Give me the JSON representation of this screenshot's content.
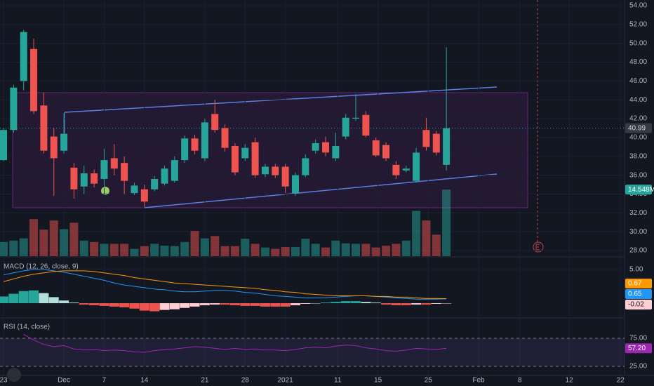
{
  "chart_data": [
    {
      "type": "candlestick",
      "xlim": [
        -0.35,
        61.7
      ],
      "xticks": [
        {
          "value": 0,
          "label": "23"
        },
        {
          "value": 6,
          "label": "Dec"
        },
        {
          "value": 10,
          "label": "7"
        },
        {
          "value": 14,
          "label": "14"
        },
        {
          "value": 20,
          "label": "21"
        },
        {
          "value": 24,
          "label": "28"
        },
        {
          "value": 28,
          "label": "2021"
        },
        {
          "value": 33.2,
          "label": "11"
        },
        {
          "value": 37.2,
          "label": "15"
        },
        {
          "value": 42.2,
          "label": "25"
        },
        {
          "value": 47.2,
          "label": "Feb"
        },
        {
          "value": 51.3,
          "label": "8"
        },
        {
          "value": 56.2,
          "label": "12"
        },
        {
          "value": 61.3,
          "label": "22"
        }
      ],
      "ylim": [
        27.4,
        54.6
      ],
      "yticks": [
        {
          "value": 28,
          "label": "28.00"
        },
        {
          "value": 30,
          "label": "30.00"
        },
        {
          "value": 32,
          "label": "32.00"
        },
        {
          "value": 34,
          "label": "34.00"
        },
        {
          "value": 36,
          "label": "36.00"
        },
        {
          "value": 38,
          "label": "38.00"
        },
        {
          "value": 40,
          "label": "40.00"
        },
        {
          "value": 42,
          "label": "42.00"
        },
        {
          "value": 44,
          "label": "44.00"
        },
        {
          "value": 46,
          "label": "46.00"
        },
        {
          "value": 48,
          "label": "48.00"
        },
        {
          "value": 50,
          "label": "50.00"
        },
        {
          "value": 52,
          "label": "52.00"
        },
        {
          "value": 54,
          "label": "54.00"
        }
      ],
      "up_color": "#26a69a",
      "down_color": "#ef5350",
      "open": [
        37.6,
        40.8,
        46.0,
        49.4,
        43.4,
        40.1,
        38.6,
        36.8,
        34.8,
        36.2,
        35.6,
        37.8,
        37.3,
        34.1,
        34.5,
        34.5,
        35.1,
        35.4,
        37.6,
        39.9,
        37.8,
        42.5,
        41.0,
        39.1,
        37.8,
        39.5,
        36.1,
        36.9,
        36.9,
        34.1,
        36.0,
        38.6,
        39.5,
        37.8,
        40.1,
        42.0,
        42.4,
        39.7,
        39.2,
        37.1,
        36.5,
        35.4,
        40.8,
        40.4,
        37.1
      ],
      "high": [
        41.0,
        45.6,
        51.4,
        50.5,
        44.8,
        41.0,
        42.6,
        37.3,
        37.0,
        36.6,
        38.8,
        39.3,
        38.0,
        35.2,
        35.0,
        35.9,
        37.0,
        38.0,
        40.2,
        40.3,
        42.0,
        44.0,
        41.4,
        39.4,
        39.3,
        40.0,
        37.2,
        37.2,
        37.2,
        36.3,
        38.2,
        39.8,
        40.1,
        40.5,
        42.5,
        44.6,
        42.8,
        40.0,
        39.5,
        37.5,
        37.0,
        38.9,
        42.1,
        40.7,
        49.6
      ],
      "low": [
        37.5,
        40.5,
        45.0,
        42.5,
        38.3,
        33.8,
        38.3,
        33.5,
        34.0,
        34.7,
        34.6,
        36.0,
        34.0,
        33.9,
        32.6,
        34.3,
        34.9,
        35.2,
        37.3,
        38.2,
        37.5,
        40.5,
        38.5,
        36.0,
        37.5,
        35.7,
        35.8,
        35.7,
        34.1,
        33.8,
        35.8,
        38.3,
        38.0,
        37.5,
        39.8,
        41.8,
        40.0,
        37.9,
        37.5,
        35.6,
        36.3,
        35.2,
        38.6,
        38.1,
        36.5
      ],
      "close": [
        40.8,
        45.3,
        51.2,
        42.8,
        38.6,
        37.8,
        40.4,
        34.5,
        36.2,
        35.1,
        37.6,
        36.7,
        35.4,
        34.9,
        33.2,
        35.6,
        36.7,
        37.6,
        39.9,
        38.6,
        41.6,
        40.8,
        38.9,
        36.3,
        38.9,
        36.0,
        36.9,
        36.0,
        34.8,
        36.0,
        37.8,
        39.4,
        38.4,
        39.1,
        42.1,
        42.1,
        40.2,
        38.1,
        37.8,
        36.0,
        36.7,
        38.4,
        39.0,
        38.4,
        40.99
      ],
      "last_price_label": "40.99",
      "volume": [
        3.1,
        3.4,
        3.9,
        8.1,
        5.8,
        7.8,
        5.9,
        7.3,
        3.4,
        3.1,
        2.7,
        2.7,
        2.7,
        1.6,
        2.2,
        2.7,
        2.3,
        2.2,
        3.1,
        5.5,
        3.9,
        4.4,
        2.2,
        2.2,
        3.8,
        2.7,
        1.9,
        1.6,
        2.0,
        2.0,
        3.8,
        2.7,
        1.9,
        3.4,
        2.8,
        2.7,
        2.7,
        1.9,
        2.3,
        2.7,
        3.4,
        9.9,
        7.8,
        4.7,
        14.548
      ],
      "volume_lim": [
        0,
        56
      ],
      "last_volume_label": "14.548M"
    },
    {
      "type": "macd",
      "title": "MACD (12, 26, close, 9)",
      "ylim": [
        -2.08,
        6.77
      ],
      "yticks": [
        {
          "value": 5,
          "label": "5.00"
        }
      ],
      "histogram": [
        1.0,
        1.4,
        1.8,
        1.9,
        1.5,
        0.9,
        0.4,
        0.1,
        -0.2,
        -0.3,
        -0.4,
        -0.5,
        -0.6,
        -0.8,
        -1.1,
        -1.2,
        -1.0,
        -0.9,
        -0.7,
        -0.5,
        -0.3,
        -0.2,
        -0.2,
        -0.3,
        -0.4,
        -0.4,
        -0.5,
        -0.5,
        -0.5,
        -0.3,
        -0.1,
        0,
        0.1,
        0.2,
        0.3,
        0.3,
        0.2,
        0.1,
        -0.2,
        -0.3,
        -0.3,
        -0.2,
        -0.2,
        -0.1,
        -0.02
      ],
      "histogram_last_label": "-0.02",
      "series": [
        {
          "name": "MACD",
          "color": "#2196f3",
          "last_label": "0.65",
          "values": [
            4.2,
            4.5,
            4.8,
            5.0,
            5.0,
            4.8,
            4.6,
            4.3,
            4.0,
            3.7,
            3.4,
            3.0,
            2.7,
            2.5,
            2.3,
            2.1,
            2.0,
            1.8,
            1.7,
            1.7,
            1.8,
            1.9,
            1.9,
            1.8,
            1.6,
            1.5,
            1.3,
            1.1,
            1.0,
            0.9,
            0.8,
            0.8,
            0.8,
            0.9,
            1.0,
            1.1,
            1.1,
            1.0,
            0.9,
            0.8,
            0.7,
            0.6,
            0.6,
            0.6,
            0.65
          ]
        },
        {
          "name": "Signal",
          "color": "#ff9800",
          "last_label": "0.67",
          "values": [
            3.2,
            3.6,
            4.0,
            4.3,
            4.5,
            4.7,
            4.8,
            4.8,
            4.8,
            4.7,
            4.5,
            4.3,
            4.1,
            3.8,
            3.6,
            3.4,
            3.2,
            3.0,
            2.9,
            2.8,
            2.7,
            2.6,
            2.5,
            2.4,
            2.3,
            2.2,
            2.0,
            1.9,
            1.7,
            1.6,
            1.4,
            1.3,
            1.2,
            1.1,
            1.1,
            1.1,
            1.1,
            1.0,
            1.0,
            0.9,
            0.9,
            0.8,
            0.7,
            0.7,
            0.67
          ]
        }
      ]
    },
    {
      "type": "line",
      "title": "RSI (14, close)",
      "ylim": [
        8.75,
        108.75
      ],
      "yticks": [
        {
          "value": 75,
          "label": "75.00"
        },
        {
          "value": 25,
          "label": "25.00"
        }
      ],
      "color": "#9c27b0",
      "values": [
        null,
        null,
        82,
        72,
        64,
        60,
        62,
        56,
        54,
        55,
        53,
        54,
        53,
        51,
        50,
        53,
        55,
        56,
        58,
        60,
        59,
        57,
        55,
        57,
        55,
        56,
        54,
        54,
        53,
        55,
        58,
        59,
        58,
        61,
        63,
        62,
        58,
        56,
        53,
        52,
        54,
        57,
        56,
        55,
        57.2
      ],
      "last_label": "57.20"
    }
  ]
}
